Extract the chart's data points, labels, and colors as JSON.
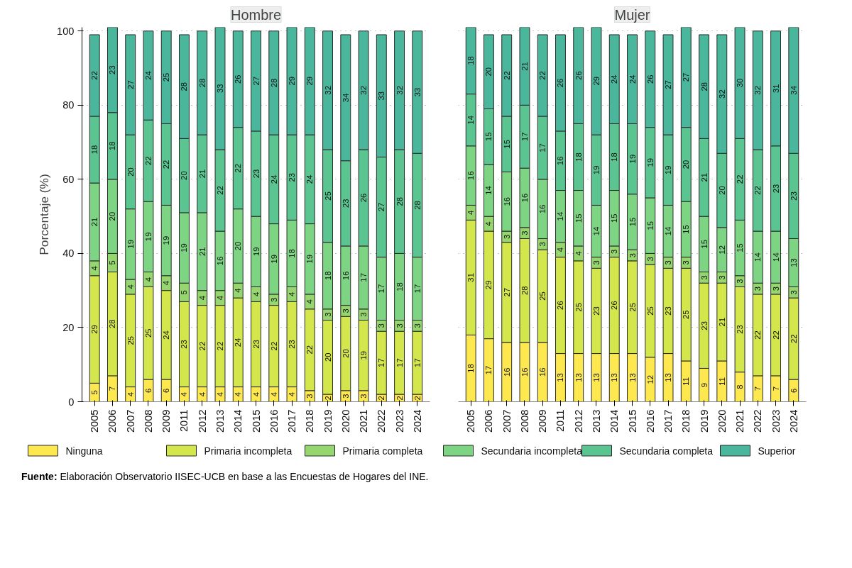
{
  "chart_data": [
    {
      "type": "bar",
      "stacked": true,
      "title": "Hombre",
      "ylabel": "Porcentaje (%)",
      "ylim": [
        0,
        101
      ],
      "yticks": [
        0,
        20,
        40,
        60,
        80,
        100
      ],
      "grid": "y",
      "legend": "bottom",
      "categories": [
        "2005",
        "2006",
        "2007",
        "2008",
        "2009",
        "2011",
        "2012",
        "2013",
        "2014",
        "2015",
        "2016",
        "2017",
        "2018",
        "2019",
        "2020",
        "2021",
        "2022",
        "2023",
        "2024"
      ],
      "annotations": [
        "Fuente: Elaboración Observatorio IISEC-UCB en base a las Encuestas de Hogares del INE."
      ],
      "series": [
        {
          "name": "Ninguna",
          "color": "#fde84f",
          "values": [
            5,
            7,
            4,
            6,
            6,
            4,
            4,
            4,
            4,
            4,
            4,
            4,
            3,
            2,
            3,
            3,
            2,
            2,
            2
          ],
          "value_labels": [
            "5",
            "7",
            "4",
            "6",
            "6",
            "4",
            "4",
            "4",
            "4",
            "4",
            "4",
            "4",
            "3",
            "2",
            "3",
            "3",
            "2",
            "2",
            "2"
          ]
        },
        {
          "name": "Primaria incompleta",
          "color": "#d3e64b",
          "values": [
            29,
            28,
            25,
            25,
            24,
            23,
            22,
            22,
            24,
            23,
            22,
            23,
            22,
            20,
            20,
            19,
            17,
            17,
            17
          ],
          "value_labels": [
            "29",
            "28",
            "25",
            "25",
            "24",
            "23",
            "22",
            "22",
            "24",
            "23",
            "22",
            "23",
            "22",
            "20",
            "20",
            "19",
            "17",
            "17",
            "17"
          ]
        },
        {
          "name": "Primaria completa",
          "color": "#95d76e",
          "values": [
            4,
            5,
            4,
            4,
            4,
            5,
            4,
            4,
            4,
            4,
            3,
            4,
            4,
            3,
            3,
            3,
            3,
            3,
            3
          ],
          "value_labels": [
            "4",
            "5",
            "4",
            "4",
            "4",
            "5",
            "4",
            "4",
            "4",
            "4",
            "3",
            "4",
            "4",
            "3",
            "3",
            "3",
            "3",
            "3",
            "3"
          ]
        },
        {
          "name": "Secundaria incompleta",
          "color": "#7dd583",
          "values": [
            21,
            20,
            19,
            19,
            19,
            19,
            21,
            16,
            20,
            19,
            19,
            18,
            19,
            18,
            16,
            17,
            17,
            18,
            17
          ],
          "value_labels": [
            "21",
            "20",
            "19",
            "19",
            "19",
            "19",
            "21",
            "16",
            "20",
            "19",
            "19",
            "18",
            "19",
            "18",
            "16",
            "17",
            "17",
            "18",
            "17"
          ]
        },
        {
          "name": "Secundaria completa",
          "color": "#5bc592",
          "values": [
            18,
            18,
            20,
            22,
            22,
            20,
            21,
            22,
            22,
            23,
            24,
            23,
            24,
            25,
            23,
            26,
            27,
            28,
            28
          ],
          "value_labels": [
            "18",
            "18",
            "20",
            "22",
            "22",
            "20",
            "21",
            "22",
            "22",
            "23",
            "24",
            "23",
            "24",
            "25",
            "23",
            "26",
            "27",
            "28",
            "28"
          ]
        },
        {
          "name": "Superior",
          "color": "#4ab79c",
          "values": [
            22,
            23,
            27,
            24,
            25,
            28,
            28,
            33,
            26,
            27,
            28,
            29,
            29,
            32,
            34,
            32,
            33,
            32,
            33
          ],
          "value_labels": [
            "22",
            "23",
            "27",
            "24",
            "25",
            "28",
            "28",
            "33",
            "26",
            "27",
            "28",
            "29",
            "29",
            "32",
            "34",
            "32",
            "33",
            "32",
            "33"
          ]
        }
      ]
    },
    {
      "type": "bar",
      "stacked": true,
      "title": "Mujer",
      "ylim": [
        0,
        101
      ],
      "yticks": [
        0,
        20,
        40,
        60,
        80,
        100
      ],
      "grid": "y",
      "tick_labels": "x",
      "categories": [
        "2005",
        "2006",
        "2007",
        "2008",
        "2009",
        "2011",
        "2012",
        "2013",
        "2014",
        "2015",
        "2016",
        "2017",
        "2018",
        "2019",
        "2020",
        "2021",
        "2022",
        "2023",
        "2024"
      ],
      "series": [
        {
          "color": "#fde84f",
          "values": [
            18,
            17,
            16,
            16,
            16,
            13,
            13,
            13,
            13,
            13,
            12,
            13,
            11,
            9,
            11,
            8,
            7,
            7,
            6
          ],
          "value_labels": [
            "18",
            "17",
            "16",
            "16",
            "16",
            "13",
            "13",
            "13",
            "13",
            "13",
            "12",
            "13",
            "11",
            "9",
            "11",
            "8",
            "7",
            "7",
            "6"
          ]
        },
        {
          "color": "#d3e64b",
          "values": [
            31,
            29,
            27,
            28,
            25,
            26,
            25,
            23,
            26,
            25,
            25,
            23,
            25,
            23,
            21,
            23,
            22,
            22,
            22
          ],
          "value_labels": [
            "31",
            "29",
            "27",
            "28",
            "25",
            "26",
            "25",
            "23",
            "26",
            "25",
            "25",
            "23",
            "25",
            "23",
            "21",
            "23",
            "22",
            "22",
            "22"
          ]
        },
        {
          "color": "#95d76e",
          "values": [
            4,
            4,
            3,
            3,
            3,
            4,
            4,
            3,
            3,
            3,
            3,
            3,
            3,
            3,
            3,
            3,
            3,
            3,
            3
          ],
          "value_labels": [
            "4",
            "4",
            "3",
            "3",
            "3",
            "4",
            "4",
            "3",
            "3",
            "3",
            "3",
            "3",
            "3",
            "3",
            "3",
            "3",
            "3",
            "3",
            "3"
          ]
        },
        {
          "color": "#7dd583",
          "values": [
            16,
            14,
            16,
            16,
            16,
            14,
            15,
            14,
            15,
            15,
            15,
            14,
            15,
            15,
            12,
            15,
            14,
            14,
            13
          ],
          "value_labels": [
            "16",
            "14",
            "16",
            "16",
            "16",
            "14",
            "15",
            "14",
            "15",
            "15",
            "15",
            "14",
            "15",
            "15",
            "12",
            "15",
            "14",
            "14",
            "13"
          ]
        },
        {
          "color": "#5bc592",
          "values": [
            14,
            15,
            15,
            17,
            17,
            16,
            18,
            19,
            18,
            19,
            19,
            19,
            20,
            21,
            20,
            22,
            22,
            23,
            23
          ],
          "value_labels": [
            "14",
            "15",
            "15",
            "17",
            "17",
            "16",
            "18",
            "19",
            "18",
            "19",
            "19",
            "19",
            "20",
            "21",
            "20",
            "22",
            "22",
            "23",
            "23"
          ]
        },
        {
          "color": "#4ab79c",
          "values": [
            18,
            20,
            22,
            21,
            22,
            26,
            26,
            29,
            24,
            24,
            26,
            27,
            27,
            28,
            32,
            30,
            32,
            31,
            34
          ],
          "value_labels": [
            "18",
            "20",
            "22",
            "21",
            "22",
            "26",
            "26",
            "29",
            "24",
            "24",
            "26",
            "27",
            "27",
            "28",
            "32",
            "30",
            "32",
            "31",
            "34"
          ]
        }
      ]
    }
  ]
}
